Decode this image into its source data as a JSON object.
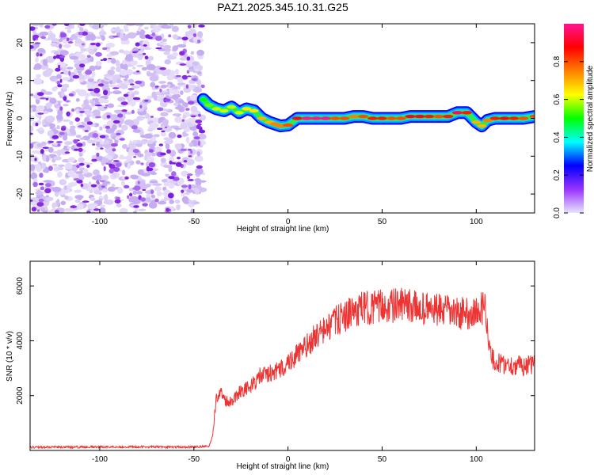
{
  "figure": {
    "title": "PAZ1.2025.345.10.31.G25"
  },
  "chart_data": [
    {
      "type": "heatmap",
      "name": "spectrogram",
      "title": "PAZ1.2025.345.10.31.G25",
      "xlabel": "Height of straight line (km)",
      "ylabel": "Frequency (Hz)",
      "xlim": [
        -137,
        131
      ],
      "ylim": [
        -25,
        25
      ],
      "xticks": [
        -100,
        -50,
        0,
        50,
        100
      ],
      "yticks": [
        -20,
        -10,
        0,
        10,
        20
      ],
      "noise_region": {
        "x_range": [
          -137,
          -45
        ],
        "amplitude_range": [
          0.0,
          0.2
        ]
      },
      "signal_track": {
        "x": [
          -45,
          -42,
          -38,
          -34,
          -30,
          -26,
          -22,
          -18,
          -14,
          -10,
          -7,
          -4,
          0,
          5,
          10,
          15,
          20,
          25,
          30,
          35,
          40,
          45,
          50,
          55,
          60,
          65,
          70,
          75,
          80,
          85,
          90,
          95,
          100,
          103,
          106,
          110,
          115,
          120,
          125,
          131
        ],
        "freq": [
          5,
          3.5,
          2.5,
          2,
          3,
          1.5,
          2.5,
          2,
          0,
          -1,
          -1.5,
          -2,
          -1.8,
          0,
          0,
          0,
          0,
          0,
          0,
          0.5,
          0.5,
          0,
          0,
          0,
          0,
          0.5,
          0.5,
          0.5,
          0.5,
          0.5,
          1.5,
          1.5,
          -1,
          -2,
          -0.5,
          0,
          0,
          0,
          0,
          0.5
        ],
        "amplitude": [
          0.5,
          0.55,
          0.6,
          0.6,
          0.6,
          0.6,
          0.65,
          0.65,
          0.7,
          0.7,
          0.75,
          0.75,
          0.8,
          0.9,
          1.0,
          1.0,
          1.0,
          0.8,
          0.8,
          0.75,
          0.8,
          0.85,
          0.85,
          0.8,
          0.8,
          0.9,
          0.9,
          0.85,
          0.8,
          0.85,
          0.95,
          0.85,
          0.7,
          0.7,
          0.75,
          0.85,
          0.9,
          0.85,
          0.8,
          0.8
        ]
      },
      "colorbar": {
        "label": "Normalized spectral amplitude",
        "range": [
          0,
          1
        ],
        "ticks": [
          "0.0",
          "0.2",
          "0.4",
          "0.6",
          "0.8"
        ],
        "colors": [
          "#e6e6fa",
          "#9933ff",
          "#0000ff",
          "#00ffff",
          "#00ff00",
          "#ffff00",
          "#ff7f00",
          "#ff0000",
          "#ff1493"
        ]
      }
    },
    {
      "type": "line",
      "name": "snr",
      "xlabel": "Height of straight line (km)",
      "ylabel": "SNR (10 * v/v)",
      "xlim": [
        -137,
        131
      ],
      "ylim": [
        0,
        6900
      ],
      "xticks": [
        -100,
        -50,
        0,
        50,
        100
      ],
      "yticks": [
        2000,
        4000,
        6000
      ],
      "line_color": "#ee3333",
      "series": [
        {
          "name": "SNR",
          "x": [
            -137,
            -120,
            -100,
            -80,
            -60,
            -50,
            -42,
            -40,
            -38,
            -35,
            -33,
            -30,
            -25,
            -20,
            -15,
            -10,
            -5,
            0,
            5,
            10,
            15,
            20,
            25,
            30,
            40,
            50,
            60,
            70,
            80,
            90,
            100,
            105,
            107,
            110,
            120,
            131
          ],
          "y": [
            120,
            120,
            130,
            130,
            125,
            130,
            150,
            500,
            2000,
            2100,
            1800,
            1800,
            2200,
            2300,
            2700,
            2800,
            2900,
            3200,
            3500,
            3800,
            4200,
            4400,
            4700,
            4900,
            5200,
            5250,
            5300,
            5200,
            5100,
            5000,
            5000,
            5300,
            3600,
            3200,
            3100,
            3100
          ]
        }
      ]
    }
  ]
}
